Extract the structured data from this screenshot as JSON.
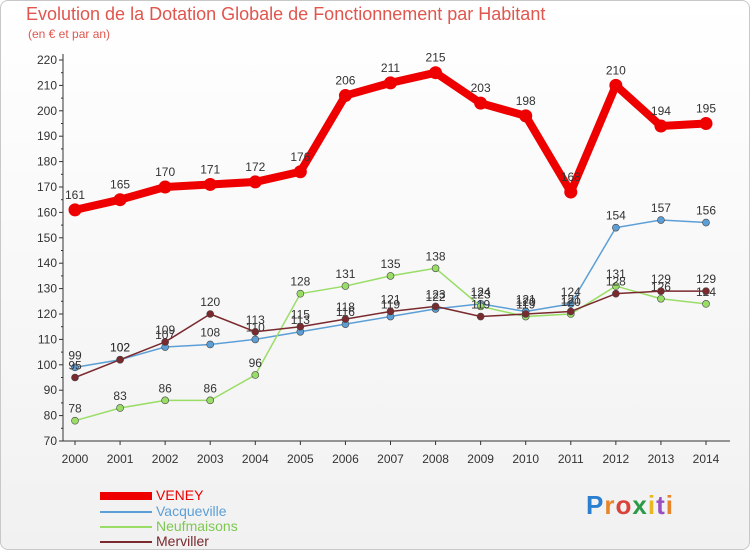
{
  "title": "Evolution de la Dotation Globale de Fonctionnement par Habitant",
  "subtitle": "(en € et par an)",
  "brand": "Proxiti",
  "chart_data": {
    "type": "line",
    "title": "Evolution de la Dotation Globale de Fonctionnement par Habitant",
    "ylabel": "(en € et par an)",
    "xlabel": "",
    "ylim": [
      70,
      220
    ],
    "ytick_step": 10,
    "grid": false,
    "legend": "bottom-left",
    "categories": [
      "2000",
      "2001",
      "2002",
      "2003",
      "2004",
      "2005",
      "2006",
      "2007",
      "2008",
      "2009",
      "2010",
      "2011",
      "2012",
      "2013",
      "2014"
    ],
    "series": [
      {
        "name": "VENEY",
        "color": "#ee0000",
        "values": [
          161,
          165,
          170,
          171,
          172,
          176,
          206,
          211,
          215,
          203,
          198,
          168,
          210,
          194,
          195
        ]
      },
      {
        "name": "Vacqueville",
        "color": "#5c9fd6",
        "values": [
          99,
          102,
          107,
          108,
          110,
          113,
          116,
          119,
          122,
          124,
          121,
          124,
          154,
          157,
          156
        ]
      },
      {
        "name": "Neufmaisons",
        "color": "#99dd66",
        "values": [
          78,
          83,
          86,
          86,
          96,
          128,
          131,
          135,
          138,
          123,
          119,
          120,
          131,
          126,
          124
        ]
      },
      {
        "name": "Merviller",
        "color": "#7a2a2e",
        "values": [
          95,
          102,
          109,
          120,
          113,
          115,
          118,
          121,
          123,
          119,
          120,
          121,
          128,
          129,
          129
        ]
      }
    ]
  }
}
